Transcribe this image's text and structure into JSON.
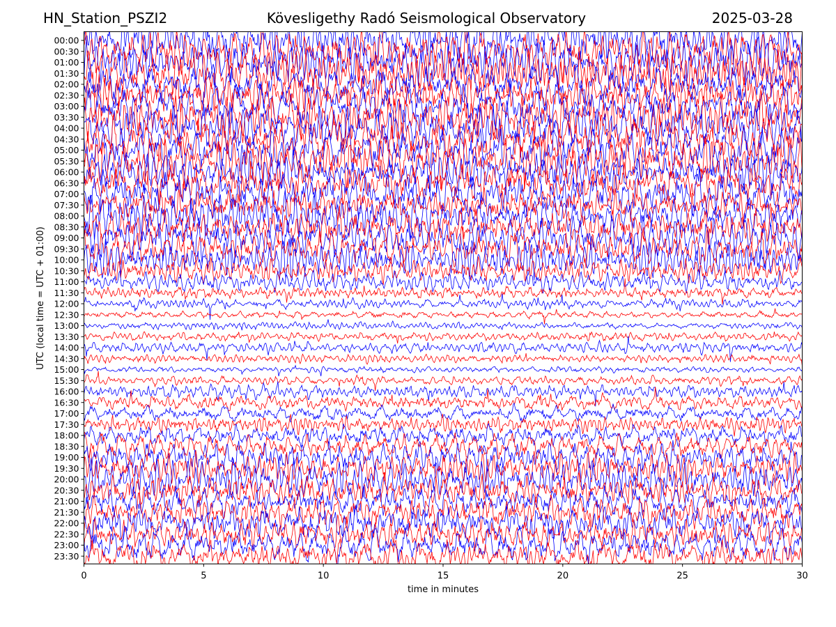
{
  "header": {
    "station": "HN_Station_PSZI2",
    "title": "Kövesligethy Radó Seismological Observatory",
    "date": "2025-03-28"
  },
  "chart_data": {
    "type": "line",
    "chart_kind": "helicorder",
    "xlabel": "time in minutes",
    "ylabel": "UTC (local time = UTC + 01:00)",
    "xlim": [
      0,
      30
    ],
    "x_ticks": [
      0,
      5,
      10,
      15,
      20,
      25,
      30
    ],
    "grid": false,
    "trace_colors": [
      "#0000ff",
      "#ff0000"
    ],
    "rows": [
      {
        "label": "00:00",
        "amplitude": 1.0
      },
      {
        "label": "00:30",
        "amplitude": 1.0
      },
      {
        "label": "01:00",
        "amplitude": 1.0
      },
      {
        "label": "01:30",
        "amplitude": 1.0
      },
      {
        "label": "02:00",
        "amplitude": 1.0
      },
      {
        "label": "02:30",
        "amplitude": 1.0
      },
      {
        "label": "03:00",
        "amplitude": 1.0
      },
      {
        "label": "03:30",
        "amplitude": 1.0
      },
      {
        "label": "04:00",
        "amplitude": 1.0
      },
      {
        "label": "04:30",
        "amplitude": 1.0
      },
      {
        "label": "05:00",
        "amplitude": 1.0
      },
      {
        "label": "05:30",
        "amplitude": 0.95
      },
      {
        "label": "06:00",
        "amplitude": 0.95
      },
      {
        "label": "06:30",
        "amplitude": 0.95
      },
      {
        "label": "07:00",
        "amplitude": 0.95
      },
      {
        "label": "07:30",
        "amplitude": 0.9
      },
      {
        "label": "08:00",
        "amplitude": 0.9
      },
      {
        "label": "08:30",
        "amplitude": 0.9
      },
      {
        "label": "09:00",
        "amplitude": 0.9
      },
      {
        "label": "09:30",
        "amplitude": 0.85
      },
      {
        "label": "10:00",
        "amplitude": 0.8
      },
      {
        "label": "10:30",
        "amplitude": 0.55
      },
      {
        "label": "11:00",
        "amplitude": 0.4
      },
      {
        "label": "11:30",
        "amplitude": 0.3
      },
      {
        "label": "12:00",
        "amplitude": 0.2
      },
      {
        "label": "12:30",
        "amplitude": 0.2
      },
      {
        "label": "13:00",
        "amplitude": 0.15
      },
      {
        "label": "13:30",
        "amplitude": 0.2
      },
      {
        "label": "14:00",
        "amplitude": 0.25
      },
      {
        "label": "14:30",
        "amplitude": 0.2
      },
      {
        "label": "15:00",
        "amplitude": 0.15
      },
      {
        "label": "15:30",
        "amplitude": 0.2
      },
      {
        "label": "16:00",
        "amplitude": 0.3
      },
      {
        "label": "16:30",
        "amplitude": 0.35
      },
      {
        "label": "17:00",
        "amplitude": 0.4
      },
      {
        "label": "17:30",
        "amplitude": 0.45
      },
      {
        "label": "18:00",
        "amplitude": 0.5
      },
      {
        "label": "18:30",
        "amplitude": 0.6
      },
      {
        "label": "19:00",
        "amplitude": 0.7
      },
      {
        "label": "19:30",
        "amplitude": 0.75
      },
      {
        "label": "20:00",
        "amplitude": 0.8
      },
      {
        "label": "20:30",
        "amplitude": 0.8
      },
      {
        "label": "21:00",
        "amplitude": 0.8
      },
      {
        "label": "21:30",
        "amplitude": 0.8
      },
      {
        "label": "22:00",
        "amplitude": 0.8
      },
      {
        "label": "22:30",
        "amplitude": 0.75
      },
      {
        "label": "23:00",
        "amplitude": 0.75
      },
      {
        "label": "23:30",
        "amplitude": 0.7
      }
    ]
  }
}
